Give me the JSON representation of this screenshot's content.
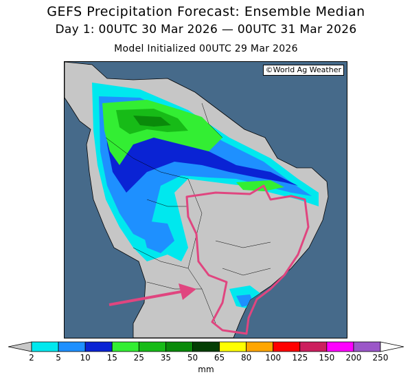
{
  "title": {
    "line1": "GEFS Precipitation Forecast: Ensemble Median",
    "line2": "Day 1: 00UTC 30 Mar 2026 — 00UTC 31 Mar 2026",
    "line3": "Model Initialized 00UTC 29 Mar 2026"
  },
  "map": {
    "credit": "©World Ag Weather",
    "colors": {
      "ocean": "#466a8a",
      "land": "#c6c6c6",
      "annotation": "#e0457f"
    }
  },
  "colorbar": {
    "unit": "mm",
    "ticks": [
      "2",
      "5",
      "10",
      "15",
      "25",
      "35",
      "50",
      "65",
      "80",
      "100",
      "125",
      "150",
      "200",
      "250"
    ],
    "colors": [
      "#00e8ee",
      "#1e90ff",
      "#0a23d4",
      "#33ee33",
      "#17bb17",
      "#0a8a0a",
      "#043e04",
      "#ffff00",
      "#ffa600",
      "#ff0000",
      "#cc1f5e",
      "#ff00ff",
      "#9b57c8"
    ],
    "end_color": "#c8c8c8"
  }
}
